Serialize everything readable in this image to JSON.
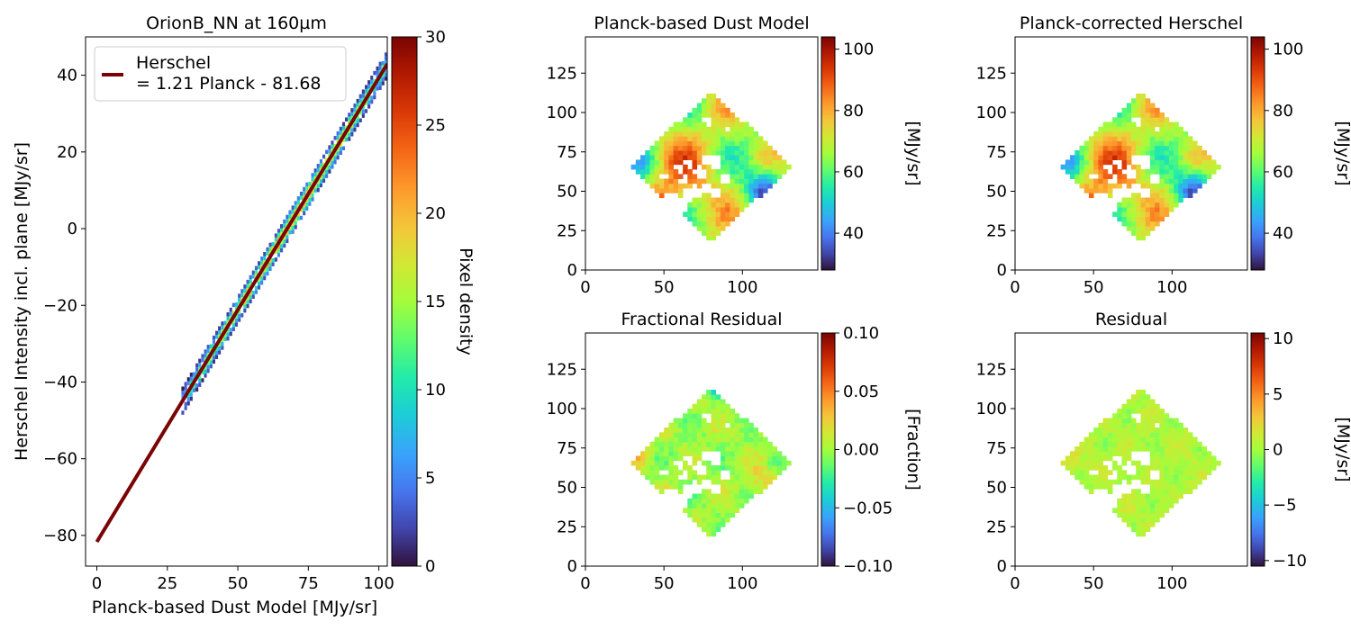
{
  "chart_data": [
    {
      "type": "scatter",
      "subtype": "2d-histogram-with-fit",
      "title": "OrionB_NN at 160µm",
      "xlabel": "Planck-based Dust Model [MJy/sr]",
      "ylabel": "Herschel Intensity incl. plane [MJy/sr]",
      "xlim": [
        -4,
        103
      ],
      "ylim": [
        -88,
        50
      ],
      "xticks": [
        0,
        25,
        50,
        75,
        100
      ],
      "yticks": [
        -80,
        -60,
        -40,
        -20,
        0,
        20,
        40
      ],
      "xtick_labels": [
        "0",
        "25",
        "50",
        "75",
        "100"
      ],
      "ytick_labels": [
        "−80",
        "−60",
        "−40",
        "−20",
        "0",
        "20",
        "40"
      ],
      "fit": {
        "slope": 1.21,
        "intercept": -81.68,
        "color": "#7a0403",
        "x_range": [
          0,
          103
        ],
        "legend_line1": "Herschel",
        "legend_line2": "= 1.21 Planck - 81.68"
      },
      "density_band": {
        "x_range": [
          30,
          103
        ],
        "residual_spread": 2.5
      },
      "legend_position": "upper-left",
      "colorbar": {
        "label": "Pixel density",
        "range": [
          0,
          30
        ],
        "ticks": [
          0,
          5,
          10,
          15,
          20,
          25,
          30
        ],
        "tick_labels": [
          "0",
          "5",
          "10",
          "15",
          "20",
          "25",
          "30"
        ],
        "colormap": "turbo"
      }
    },
    {
      "type": "heatmap",
      "title": "Planck-based Dust Model",
      "xlim": [
        0,
        148
      ],
      "ylim": [
        0,
        148
      ],
      "xtick_labels": [
        "0",
        "50",
        "100"
      ],
      "ytick_labels": [
        "0",
        "25",
        "50",
        "75",
        "100",
        "125"
      ],
      "colorbar": {
        "label": "[MJy/sr]",
        "range": [
          28,
          104
        ],
        "ticks": [
          40,
          60,
          80,
          100
        ],
        "tick_labels": [
          "40",
          "60",
          "80",
          "100"
        ],
        "colormap": "turbo"
      }
    },
    {
      "type": "heatmap",
      "title": "Planck-corrected Herschel",
      "xlim": [
        0,
        148
      ],
      "ylim": [
        0,
        148
      ],
      "xtick_labels": [
        "0",
        "50",
        "100"
      ],
      "ytick_labels": [
        "0",
        "25",
        "50",
        "75",
        "100",
        "125"
      ],
      "colorbar": {
        "label": "[MJy/sr]",
        "range": [
          28,
          104
        ],
        "ticks": [
          40,
          60,
          80,
          100
        ],
        "tick_labels": [
          "40",
          "60",
          "80",
          "100"
        ],
        "colormap": "turbo"
      }
    },
    {
      "type": "heatmap",
      "title": "Fractional Residual",
      "xlim": [
        0,
        148
      ],
      "ylim": [
        0,
        148
      ],
      "xtick_labels": [
        "0",
        "50",
        "100"
      ],
      "ytick_labels": [
        "0",
        "25",
        "50",
        "75",
        "100",
        "125"
      ],
      "colorbar": {
        "label": "[Fraction]",
        "range": [
          -0.1,
          0.1
        ],
        "ticks": [
          -0.1,
          -0.05,
          0,
          0.05,
          0.1
        ],
        "tick_labels": [
          "−0.10",
          "−0.05",
          "0.00",
          "0.05",
          "0.10"
        ],
        "colormap": "turbo"
      }
    },
    {
      "type": "heatmap",
      "title": "Residual",
      "xlim": [
        0,
        148
      ],
      "ylim": [
        0,
        148
      ],
      "xtick_labels": [
        "0",
        "50",
        "100"
      ],
      "ytick_labels": [
        "0",
        "25",
        "50",
        "75",
        "100",
        "125"
      ],
      "colorbar": {
        "label": "[MJy/sr]",
        "range": [
          -10.5,
          10.5
        ],
        "ticks": [
          -10,
          -5,
          0,
          5,
          10
        ],
        "tick_labels": [
          "−10",
          "−5",
          "0",
          "5",
          "10"
        ],
        "colormap": "turbo"
      }
    }
  ],
  "map_common": {
    "xticks": [
      0,
      50,
      100
    ],
    "yticks": [
      0,
      25,
      50,
      75,
      100,
      125
    ],
    "diamond": {
      "top": [
        80,
        113
      ],
      "right": [
        132,
        66
      ],
      "bottom": [
        80,
        18
      ],
      "left": [
        28,
        66
      ]
    },
    "holes": [
      [
        47,
        42,
        5
      ],
      [
        55,
        44,
        6
      ],
      [
        60,
        40,
        5
      ],
      [
        65,
        47,
        4
      ],
      [
        70,
        50,
        4
      ],
      [
        73,
        62,
        4
      ],
      [
        78,
        70,
        4
      ],
      [
        83,
        68,
        4
      ],
      [
        88,
        58,
        3
      ],
      [
        77,
        52,
        4
      ],
      [
        83,
        50,
        3
      ],
      [
        66,
        68,
        3
      ],
      [
        60,
        65,
        3
      ],
      [
        78,
        95,
        3
      ],
      [
        90,
        90,
        2
      ],
      [
        52,
        28,
        3
      ],
      [
        56,
        36,
        3
      ],
      [
        50,
        60,
        2.5
      ],
      [
        63,
        58,
        2.5
      ],
      [
        62,
        56,
        2
      ]
    ]
  }
}
